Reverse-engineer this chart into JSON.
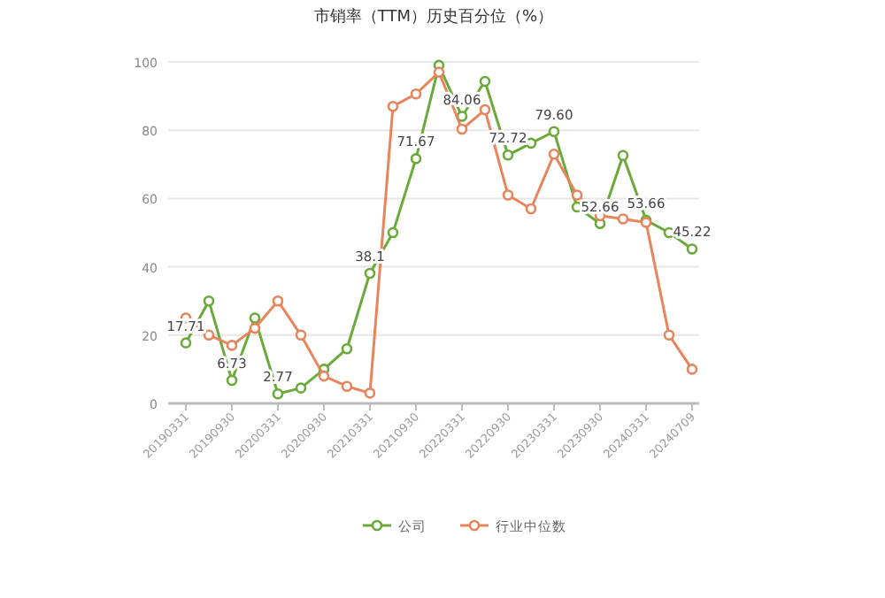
{
  "chart_data": {
    "type": "line",
    "title": "市销率（TTM）历史百分位（%）",
    "categories": [
      "20190331",
      null,
      "20190930",
      null,
      "20200331",
      null,
      "20200930",
      null,
      "20210331",
      null,
      "20210930",
      null,
      "20220331",
      null,
      "20220930",
      null,
      "20230331",
      null,
      "20230930",
      null,
      "20240331",
      null,
      "20240709"
    ],
    "series": [
      {
        "name": "公司",
        "color": "#6aaa3a",
        "values": [
          17.71,
          30,
          6.73,
          25,
          2.77,
          4.5,
          10,
          16,
          38.1,
          50,
          71.67,
          99,
          84.06,
          94.3,
          72.72,
          76.2,
          79.6,
          57.5,
          52.66,
          72.6,
          53.66,
          50,
          45.22
        ],
        "value_labels": [
          "17.71",
          null,
          "6.73",
          null,
          "2.77",
          null,
          null,
          null,
          "38.1",
          null,
          "71.67",
          null,
          "84.06",
          null,
          "72.72",
          null,
          "79.60",
          null,
          "52.66",
          null,
          "53.66",
          null,
          "45.22"
        ]
      },
      {
        "name": "行业中位数",
        "color": "#e8845c",
        "values": [
          25,
          20,
          17,
          22,
          30,
          20,
          8,
          5,
          3,
          87,
          90.6,
          97,
          80.3,
          86,
          61,
          57,
          73,
          61,
          55,
          54,
          53,
          20,
          10
        ]
      }
    ],
    "ylim": [
      0,
      100
    ],
    "yticks": [
      0,
      20,
      40,
      60,
      80,
      100
    ],
    "grid": "y",
    "legend": "bottom",
    "marker": "circle",
    "line_style": "solid"
  }
}
